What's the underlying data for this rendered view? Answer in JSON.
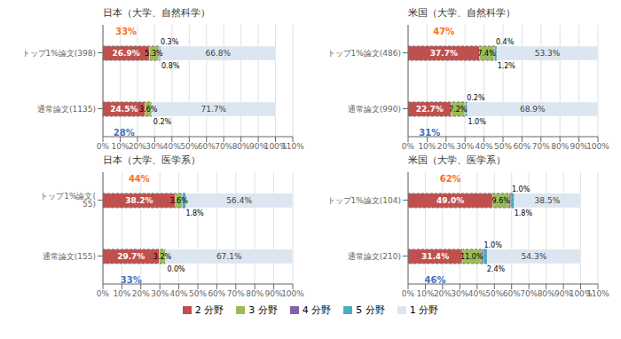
{
  "chart_data": [
    {
      "type": "bar",
      "orientation": "horizontal",
      "stacked": true,
      "data_labels": true,
      "grid": true,
      "title": "日本（大学、自然科学）",
      "categories": [
        "トップ1%論文(398)",
        "通常論文(1135)"
      ],
      "series": [
        {
          "name": "2 分野",
          "color": "#c0504d",
          "values": [
            26.9,
            24.5
          ],
          "value_labels": [
            "26.9%",
            "24.5%"
          ]
        },
        {
          "name": "3 分野",
          "color": "#9bbb59",
          "values": [
            5.3,
            3.6
          ],
          "value_labels": [
            "5.3%",
            "3.6%"
          ]
        },
        {
          "name": "4 分野",
          "color": "#8064a2",
          "values": [
            0.3,
            0.0
          ],
          "value_labels": [
            "0.3%",
            "0.0%"
          ]
        },
        {
          "name": "5 分野",
          "color": "#4bacc6",
          "values": [
            0.8,
            0.2
          ],
          "value_labels": [
            "0.8%",
            "0.2%"
          ]
        },
        {
          "name": "1 分野",
          "color": "#dce6f1",
          "values": [
            66.8,
            71.7
          ],
          "value_labels": [
            "66.8%",
            "71.7%"
          ]
        }
      ],
      "annotations": [
        {
          "text": "33%",
          "color": "#f97316"
        },
        {
          "text": "28%",
          "color": "#4472c4"
        }
      ],
      "xlim": [
        0,
        110
      ],
      "xticks": [
        {
          "value": 0,
          "label": "0%"
        },
        {
          "value": 10,
          "label": "10%"
        },
        {
          "value": 20,
          "label": "20%"
        },
        {
          "value": 30,
          "label": "30%"
        },
        {
          "value": 40,
          "label": "40%"
        },
        {
          "value": 50,
          "label": "50%"
        },
        {
          "value": 60,
          "label": "60%"
        },
        {
          "value": 70,
          "label": "70%"
        },
        {
          "value": 80,
          "label": "80%"
        },
        {
          "value": 90,
          "label": "90%"
        },
        {
          "value": 100,
          "label": "100%"
        },
        {
          "value": 110,
          "label": "110%"
        }
      ]
    },
    {
      "type": "bar",
      "orientation": "horizontal",
      "stacked": true,
      "data_labels": true,
      "grid": true,
      "title": "米国（大学、自然科学）",
      "categories": [
        "トップ1%論文(486)",
        "通常論文(990)"
      ],
      "series": [
        {
          "name": "2 分野",
          "color": "#c0504d",
          "values": [
            37.7,
            22.7
          ],
          "value_labels": [
            "37.7%",
            "22.7%"
          ]
        },
        {
          "name": "3 分野",
          "color": "#9bbb59",
          "values": [
            7.4,
            7.2
          ],
          "value_labels": [
            "7.4%",
            "7.2%"
          ]
        },
        {
          "name": "4 分野",
          "color": "#8064a2",
          "values": [
            0.4,
            0.2
          ],
          "value_labels": [
            "0.4%",
            "0.2%"
          ]
        },
        {
          "name": "5 分野",
          "color": "#4bacc6",
          "values": [
            1.2,
            1.0
          ],
          "value_labels": [
            "1.2%",
            "1.0%"
          ]
        },
        {
          "name": "1 分野",
          "color": "#dce6f1",
          "values": [
            53.3,
            68.9
          ],
          "value_labels": [
            "53.3%",
            "68.9%"
          ]
        }
      ],
      "annotations": [
        {
          "text": "47%",
          "color": "#f97316"
        },
        {
          "text": "31%",
          "color": "#4472c4"
        }
      ],
      "xlim": [
        0,
        100
      ],
      "xticks": [
        {
          "value": 0,
          "label": "0%"
        },
        {
          "value": 10,
          "label": "10%"
        },
        {
          "value": 20,
          "label": "20%"
        },
        {
          "value": 30,
          "label": "30%"
        },
        {
          "value": 40,
          "label": "40%"
        },
        {
          "value": 50,
          "label": "50%"
        },
        {
          "value": 60,
          "label": "60%"
        },
        {
          "value": 70,
          "label": "70%"
        },
        {
          "value": 80,
          "label": "80%"
        },
        {
          "value": 90,
          "label": "90%"
        },
        {
          "value": 100,
          "label": "100%"
        }
      ]
    },
    {
      "type": "bar",
      "orientation": "horizontal",
      "stacked": true,
      "data_labels": true,
      "grid": true,
      "title": "日本（大学、医学系）",
      "categories": [
        "トップ1%論文( 55)",
        "通常論文(155)"
      ],
      "series": [
        {
          "name": "2 分野",
          "color": "#c0504d",
          "values": [
            38.2,
            29.7
          ],
          "value_labels": [
            "38.2%",
            "29.7%"
          ]
        },
        {
          "name": "3 分野",
          "color": "#9bbb59",
          "values": [
            3.6,
            3.2
          ],
          "value_labels": [
            "3.6%",
            "3.2%"
          ]
        },
        {
          "name": "4 分野",
          "color": "#8064a2",
          "values": [
            0.0,
            0.0
          ],
          "value_labels": [
            "0.0%",
            "0.0%"
          ]
        },
        {
          "name": "5 分野",
          "color": "#4bacc6",
          "values": [
            1.8,
            0.0
          ],
          "value_labels": [
            "1.8%",
            "0.0%"
          ]
        },
        {
          "name": "1 分野",
          "color": "#dce6f1",
          "values": [
            56.4,
            67.1
          ],
          "value_labels": [
            "56.4%",
            "67.1%"
          ]
        }
      ],
      "annotations": [
        {
          "text": "44%",
          "color": "#f97316"
        },
        {
          "text": "33%",
          "color": "#4472c4"
        }
      ],
      "xlim": [
        0,
        100
      ],
      "xticks": [
        {
          "value": 0,
          "label": "0%"
        },
        {
          "value": 10,
          "label": "10%"
        },
        {
          "value": 20,
          "label": "20%"
        },
        {
          "value": 30,
          "label": "30%"
        },
        {
          "value": 40,
          "label": "40%"
        },
        {
          "value": 50,
          "label": "50%"
        },
        {
          "value": 60,
          "label": "60%"
        },
        {
          "value": 70,
          "label": "70%"
        },
        {
          "value": 80,
          "label": "80%"
        },
        {
          "value": 90,
          "label": "90%"
        },
        {
          "value": 100,
          "label": "100%"
        }
      ]
    },
    {
      "type": "bar",
      "orientation": "horizontal",
      "stacked": true,
      "data_labels": true,
      "grid": true,
      "title": "米国（大学、医学系）",
      "categories": [
        "トップ1%論文(104)",
        "通常論文(210)"
      ],
      "series": [
        {
          "name": "2 分野",
          "color": "#c0504d",
          "values": [
            49.0,
            31.4
          ],
          "value_labels": [
            "49.0%",
            "31.4%"
          ]
        },
        {
          "name": "3 分野",
          "color": "#9bbb59",
          "values": [
            9.6,
            11.0
          ],
          "value_labels": [
            "9.6%",
            "11.0%"
          ]
        },
        {
          "name": "4 分野",
          "color": "#8064a2",
          "values": [
            1.0,
            1.0
          ],
          "value_labels": [
            "1.0%",
            "1.0%"
          ]
        },
        {
          "name": "5 分野",
          "color": "#4bacc6",
          "values": [
            1.8,
            2.4
          ],
          "value_labels": [
            "1.8%",
            "2.4%"
          ]
        },
        {
          "name": "1 分野",
          "color": "#dce6f1",
          "values": [
            38.5,
            54.3
          ],
          "value_labels": [
            "38.5%",
            "54.3%"
          ]
        }
      ],
      "annotations": [
        {
          "text": "62%",
          "color": "#f97316"
        },
        {
          "text": "46%",
          "color": "#4472c4"
        }
      ],
      "xlim": [
        0,
        110
      ],
      "xticks": [
        {
          "value": 0,
          "label": "0%"
        },
        {
          "value": 10,
          "label": "10%"
        },
        {
          "value": 20,
          "label": "20%"
        },
        {
          "value": 30,
          "label": "30%"
        },
        {
          "value": 40,
          "label": "40%"
        },
        {
          "value": 50,
          "label": "50%"
        },
        {
          "value": 60,
          "label": "60%"
        },
        {
          "value": 70,
          "label": "70%"
        },
        {
          "value": 80,
          "label": "80%"
        },
        {
          "value": 90,
          "label": "90%"
        },
        {
          "value": 100,
          "label": "100%"
        },
        {
          "value": 110,
          "label": "110%"
        }
      ]
    }
  ]
}
